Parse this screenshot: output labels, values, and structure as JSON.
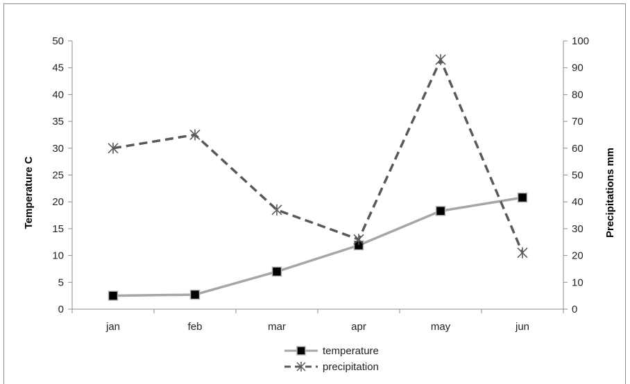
{
  "chart_data": {
    "type": "line",
    "categories": [
      "jan",
      "feb",
      "mar",
      "apr",
      "may",
      "jun"
    ],
    "series": [
      {
        "name": "temperature",
        "axis": "left",
        "values": [
          2.5,
          2.7,
          7.0,
          11.9,
          18.3,
          20.8
        ],
        "color": "#a6a6a6",
        "line_style": "solid",
        "marker": "square"
      },
      {
        "name": "precipitation",
        "axis": "right",
        "values": [
          60,
          65,
          37,
          26,
          93,
          21
        ],
        "color": "#595959",
        "line_style": "dashed",
        "marker": "asterisk"
      }
    ],
    "ylabel": "Temperature C",
    "y2label": "Precipitations mm",
    "ylim": [
      0,
      50
    ],
    "y2lim": [
      0,
      100
    ],
    "yticks": [
      "0",
      "5",
      "10",
      "15",
      "20",
      "25",
      "30",
      "35",
      "40",
      "45",
      "50"
    ],
    "y2ticks": [
      "0",
      "10",
      "20",
      "30",
      "40",
      "50",
      "60",
      "70",
      "80",
      "90",
      "100"
    ],
    "grid": false,
    "legend": "bottom"
  }
}
